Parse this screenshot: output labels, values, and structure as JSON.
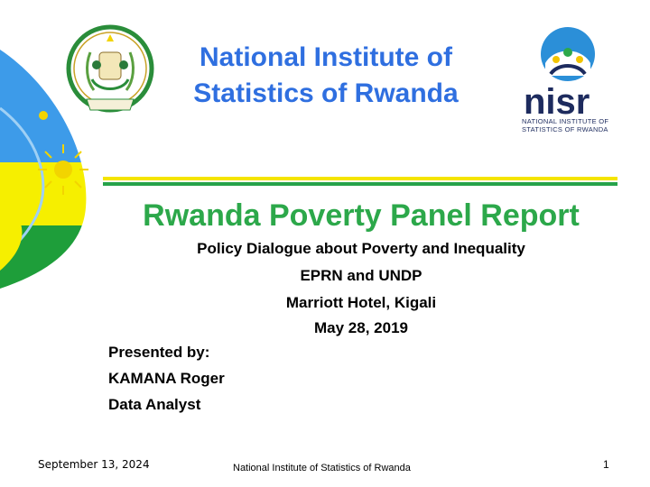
{
  "header": {
    "title_line1": "National Institute of",
    "title_line2": "Statistics of Rwanda",
    "nisr_wordmark": "nisr",
    "nisr_sub_line1": "NATIONAL INSTITUTE OF",
    "nisr_sub_line2": "STATISTICS OF RWANDA",
    "emblem_top_text": "REPUBULIKA Y'U RWANDA",
    "emblem_motto": "UBUMWE - UMURIMO - GUKUNDA IGIHUGU"
  },
  "main": {
    "report_title": "Rwanda Poverty Panel Report",
    "lines": [
      "Policy Dialogue about Poverty and Inequality",
      "EPRN and UNDP",
      "Marriott Hotel, Kigali",
      "May 28, 2019"
    ],
    "presenter": [
      "Presented by:",
      "KAMANA Roger",
      "Data Analyst"
    ]
  },
  "footer": {
    "date": "September 13, 2024",
    "center": "National Institute of Statistics of Rwanda",
    "page": "1"
  },
  "colors": {
    "title_blue": "#2f6fe0",
    "report_green": "#2ca84a",
    "flag_blue": "#3d9be9",
    "flag_yellow": "#f6ef00",
    "flag_green": "#1e9e3a",
    "nisr_navy": "#1d2b5e"
  }
}
